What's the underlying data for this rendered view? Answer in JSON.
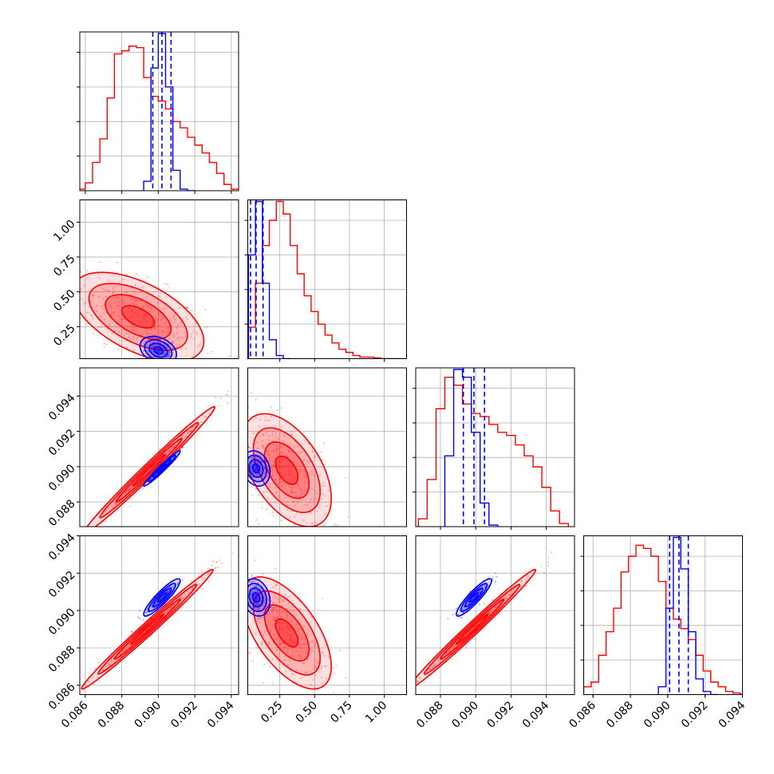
{
  "chart_data": {
    "type": "corner",
    "grid": true,
    "colors": {
      "prior": "#ff0000",
      "posterior": "#0000ff"
    },
    "parameters": [
      {
        "range": [
          0.0857,
          0.0944
        ],
        "ticks": [
          "0.086",
          "0.088",
          "0.090",
          "0.092",
          "0.094"
        ],
        "tick_values": [
          0.086,
          0.088,
          0.09,
          0.092,
          0.094
        ]
      },
      {
        "range": [
          0.02,
          1.16
        ],
        "ticks": [
          "0.25",
          "0.50",
          "0.75",
          "1.00"
        ],
        "tick_values": [
          0.25,
          0.5,
          0.75,
          1.0
        ]
      },
      {
        "range": [
          0.0866,
          0.0956
        ],
        "ticks": [
          "0.088",
          "0.090",
          "0.092",
          "0.094"
        ],
        "tick_values": [
          0.088,
          0.09,
          0.092,
          0.094
        ]
      },
      {
        "range": [
          0.0855,
          0.094
        ],
        "ticks": [
          "0.086",
          "0.088",
          "0.090",
          "0.092",
          "0.094"
        ],
        "tick_values": [
          0.086,
          0.088,
          0.09,
          0.092,
          0.094
        ]
      }
    ],
    "y_tick_labels": [
      {
        "row": 1,
        "ticks": [
          "0.25",
          "0.50",
          "0.75",
          "1.00"
        ]
      },
      {
        "row": 2,
        "ticks": [
          "0.088",
          "0.090",
          "0.092",
          "0.094"
        ]
      },
      {
        "row": 3,
        "ticks": [
          "0.086",
          "0.088",
          "0.090",
          "0.092",
          "0.094"
        ]
      }
    ],
    "x_tick_labels": [
      {
        "col": 0,
        "ticks": [
          "0.086",
          "0.088",
          "0.090",
          "0.092",
          "0.094"
        ]
      },
      {
        "col": 1,
        "ticks": [
          "0.25",
          "0.50",
          "0.75",
          "1.00"
        ]
      },
      {
        "col": 2,
        "ticks": [
          "0.088",
          "0.090",
          "0.092",
          "0.094"
        ]
      },
      {
        "col": 3,
        "ticks": [
          "0.086",
          "0.088",
          "0.090",
          "0.092",
          "0.094"
        ]
      }
    ],
    "histograms": [
      {
        "index": 0,
        "prior": {
          "x": [
            0.0858,
            0.0862,
            0.0866,
            0.087,
            0.0874,
            0.0878,
            0.0882,
            0.0886,
            0.089,
            0.0894,
            0.0898,
            0.0902,
            0.0906,
            0.091,
            0.0914,
            0.0918,
            0.0922,
            0.0926,
            0.093,
            0.0934,
            0.0938,
            0.0942
          ],
          "values": [
            0.01,
            0.05,
            0.18,
            0.33,
            0.59,
            0.87,
            0.89,
            0.92,
            0.91,
            0.72,
            0.6,
            0.57,
            0.52,
            0.44,
            0.4,
            0.34,
            0.29,
            0.24,
            0.18,
            0.11,
            0.04,
            0.01
          ]
        },
        "posterior": {
          "x": [
            0.0894,
            0.0898,
            0.0902,
            0.0906,
            0.091,
            0.0914,
            0.0918
          ],
          "values": [
            0.06,
            0.78,
            1.0,
            0.66,
            0.13,
            0.01,
            0.0
          ]
        },
        "quantiles": [
          0.0897,
          0.0902,
          0.0907
        ]
      },
      {
        "index": 1,
        "prior": {
          "x": [
            0.05,
            0.1,
            0.15,
            0.2,
            0.25,
            0.3,
            0.35,
            0.4,
            0.45,
            0.5,
            0.55,
            0.6,
            0.65,
            0.7,
            0.75,
            0.8,
            0.85,
            0.9,
            0.95,
            1.0,
            1.05,
            1.1
          ],
          "values": [
            0.2,
            0.48,
            0.72,
            0.88,
            1.0,
            0.92,
            0.72,
            0.54,
            0.4,
            0.3,
            0.22,
            0.15,
            0.1,
            0.06,
            0.04,
            0.02,
            0.01,
            0.01,
            0.005,
            0.0,
            0.0,
            0.0
          ]
        },
        "posterior": {
          "x": [
            0.05,
            0.1,
            0.15,
            0.2,
            0.25,
            0.3
          ],
          "values": [
            0.66,
            1.0,
            0.48,
            0.12,
            0.02,
            0.0
          ]
        },
        "quantiles": [
          0.04,
          0.08,
          0.13
        ]
      },
      {
        "index": 2,
        "prior": {
          "x": [
            0.087,
            0.0875,
            0.088,
            0.0885,
            0.089,
            0.0895,
            0.09,
            0.0905,
            0.091,
            0.0915,
            0.092,
            0.0925,
            0.093,
            0.0935,
            0.094,
            0.0945,
            0.095
          ],
          "values": [
            0.05,
            0.3,
            0.75,
            0.95,
            0.9,
            0.78,
            0.72,
            0.7,
            0.65,
            0.6,
            0.58,
            0.52,
            0.45,
            0.38,
            0.25,
            0.1,
            0.02
          ]
        },
        "posterior": {
          "x": [
            0.0885,
            0.089,
            0.0895,
            0.09,
            0.0905,
            0.091
          ],
          "values": [
            0.45,
            1.0,
            0.95,
            0.6,
            0.15,
            0.01
          ]
        },
        "quantiles": [
          0.0893,
          0.0899,
          0.0905
        ]
      },
      {
        "index": 3,
        "prior": {
          "x": [
            0.0857,
            0.0861,
            0.0865,
            0.0869,
            0.0873,
            0.0877,
            0.0881,
            0.0885,
            0.0889,
            0.0893,
            0.0897,
            0.0901,
            0.0905,
            0.0909,
            0.0913,
            0.0917,
            0.0921,
            0.0925,
            0.0929,
            0.0933,
            0.0937
          ],
          "values": [
            0.05,
            0.08,
            0.25,
            0.4,
            0.55,
            0.78,
            0.88,
            0.95,
            0.93,
            0.88,
            0.72,
            0.55,
            0.48,
            0.42,
            0.35,
            0.25,
            0.15,
            0.08,
            0.05,
            0.02,
            0.01
          ]
        },
        "posterior": {
          "x": [
            0.0897,
            0.0901,
            0.0905,
            0.0909,
            0.0913,
            0.0917,
            0.0921,
            0.0925
          ],
          "values": [
            0.05,
            0.55,
            1.0,
            0.8,
            0.4,
            0.1,
            0.02,
            0.0
          ]
        },
        "quantiles": [
          0.0901,
          0.0906,
          0.0911
        ]
      }
    ],
    "panels_2d": [
      {
        "row": 1,
        "col": 0,
        "prior": {
          "center": [
            0.0889,
            0.32
          ],
          "spread": [
            0.0018,
            0.16
          ],
          "corr": -0.55
        },
        "posterior": {
          "center": [
            0.09,
            0.08
          ],
          "spread": [
            0.0005,
            0.05
          ],
          "corr": -0.3
        }
      },
      {
        "row": 2,
        "col": 0,
        "prior": {
          "center": [
            0.0895,
            0.0898
          ],
          "spread": [
            0.0018,
            0.0018
          ],
          "corr": 0.99
        },
        "posterior": {
          "center": [
            0.0902,
            0.0899
          ],
          "spread": [
            0.0005,
            0.0005
          ],
          "corr": 0.97
        }
      },
      {
        "row": 2,
        "col": 1,
        "prior": {
          "center": [
            0.3,
            0.0898
          ],
          "spread": [
            0.16,
            0.0016
          ],
          "corr": -0.5
        },
        "posterior": {
          "center": [
            0.08,
            0.0899
          ],
          "spread": [
            0.05,
            0.0005
          ],
          "corr": -0.2
        }
      },
      {
        "row": 3,
        "col": 0,
        "prior": {
          "center": [
            0.0894,
            0.089
          ],
          "spread": [
            0.0018,
            0.0016
          ],
          "corr": 0.99
        },
        "posterior": {
          "center": [
            0.0902,
            0.0907
          ],
          "spread": [
            0.0005,
            0.0005
          ],
          "corr": 0.9
        }
      },
      {
        "row": 3,
        "col": 1,
        "prior": {
          "center": [
            0.3,
            0.0888
          ],
          "spread": [
            0.16,
            0.0015
          ],
          "corr": -0.6
        },
        "posterior": {
          "center": [
            0.08,
            0.0907
          ],
          "spread": [
            0.05,
            0.0005
          ],
          "corr": -0.2
        }
      },
      {
        "row": 3,
        "col": 2,
        "prior": {
          "center": [
            0.0898,
            0.089
          ],
          "spread": [
            0.0018,
            0.0016
          ],
          "corr": 0.99
        },
        "posterior": {
          "center": [
            0.0899,
            0.0907
          ],
          "spread": [
            0.0005,
            0.0005
          ],
          "corr": 0.9
        }
      }
    ]
  }
}
